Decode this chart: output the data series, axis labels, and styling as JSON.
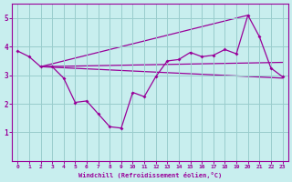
{
  "line1_x": [
    0,
    1,
    2,
    3,
    4,
    5,
    6,
    7,
    8,
    9,
    10,
    11,
    12,
    13,
    14,
    15,
    16,
    17,
    18,
    19,
    20,
    21,
    22,
    23
  ],
  "line1_y": [
    3.85,
    3.65,
    3.3,
    3.3,
    2.9,
    2.05,
    2.1,
    1.65,
    1.2,
    1.15,
    2.4,
    2.25,
    2.95,
    3.5,
    3.55,
    3.8,
    3.65,
    3.7,
    3.9,
    3.75,
    5.1,
    4.35,
    3.25,
    2.95
  ],
  "line2_x": [
    2,
    23
  ],
  "line2_y": [
    3.3,
    2.9
  ],
  "line3_x": [
    2,
    23
  ],
  "line3_y": [
    3.3,
    3.45
  ],
  "line4_x": [
    2,
    20
  ],
  "line4_y": [
    3.3,
    5.1
  ],
  "color": "#990099",
  "bg_color": "#c8eeee",
  "grid_color": "#99cccc",
  "xlabel": "Windchill (Refroidissement éolien,°C)",
  "ylim": [
    0,
    5.5
  ],
  "xlim": [
    -0.5,
    23.5
  ],
  "yticks": [
    1,
    2,
    3,
    4,
    5
  ],
  "xticks": [
    0,
    1,
    2,
    3,
    4,
    5,
    6,
    7,
    8,
    9,
    10,
    11,
    12,
    13,
    14,
    15,
    16,
    17,
    18,
    19,
    20,
    21,
    22,
    23
  ]
}
